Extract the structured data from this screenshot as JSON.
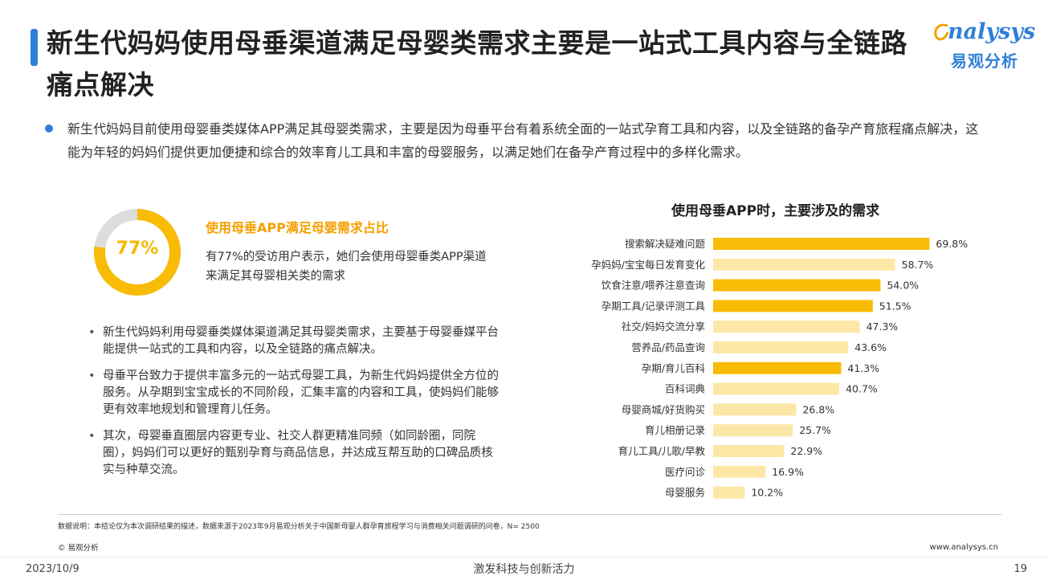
{
  "header": {
    "title": "新生代妈妈使用母垂渠道满足母婴类需求主要是一站式工具内容与全链路痛点解决",
    "logo_en": "nalysys",
    "logo_cn": "易观分析"
  },
  "summary": "新生代妈妈目前使用母婴垂类媒体APP满足其母婴类需求，主要是因为母垂平台有着系统全面的一站式孕育工具和内容，以及全链路的备孕产育旅程痛点解决，这能为年轻的妈妈们提供更加便捷和综合的效率育儿工具和丰富的母婴服务，以满足她们在备孕产育过程中的多样化需求。",
  "stat": {
    "value_label": "77%",
    "value": 77,
    "title": "使用母垂APP满足母婴需求占比",
    "desc": "有77%的受访用户表示，她们会使用母婴垂类APP渠道来满足其母婴相关类的需求"
  },
  "bullets": [
    "新生代妈妈利用母婴垂类媒体渠道满足其母婴类需求，主要基于母婴垂媒平台能提供一站式的工具和内容，以及全链路的痛点解决。",
    "母垂平台致力于提供丰富多元的一站式母婴工具，为新生代妈妈提供全方位的服务。从孕期到宝宝成长的不同阶段，汇集丰富的内容和工具，使妈妈们能够更有效率地规划和管理育儿任务。",
    "其次，母婴垂直圈层内容更专业、社交人群更精准同频（如同龄圈，同院圈），妈妈们可以更好的甄别孕育与商品信息，并达成互帮互助的口碑品质核实与种草交流。"
  ],
  "bullet_mark": "•",
  "chart_data": {
    "type": "bar",
    "orientation": "horizontal",
    "title": "使用母垂APP时，主要涉及的需求",
    "categories": [
      "搜索解决疑难问题",
      "孕妈妈/宝宝每日发育变化",
      "饮食注意/喂养注意查询",
      "孕期工具/记录评测工具",
      "社交/妈妈交流分享",
      "营养品/药品查询",
      "孕期/育儿百科",
      "百科词典",
      "母婴商城/好货购买",
      "育儿相册记录",
      "育儿工具/儿歌/早教",
      "医疗问诊",
      "母婴服务"
    ],
    "values": [
      69.8,
      58.7,
      54.0,
      51.5,
      47.3,
      43.6,
      41.3,
      40.7,
      26.8,
      25.7,
      22.9,
      16.9,
      10.2
    ],
    "value_labels": [
      "69.8%",
      "58.7%",
      "54.0%",
      "51.5%",
      "47.3%",
      "43.6%",
      "41.3%",
      "40.7%",
      "26.8%",
      "25.7%",
      "22.9%",
      "16.9%",
      "10.2%"
    ],
    "highlighted": [
      true,
      false,
      true,
      true,
      false,
      false,
      true,
      false,
      false,
      false,
      false,
      false,
      false
    ],
    "xlim": [
      0,
      100
    ],
    "colors": {
      "highlight": "#f8bc06",
      "normal": "#fde7a6"
    }
  },
  "footer": {
    "note": "数据说明：本结论仅为本次调研结果的描述，数据来源于2023年9月易观分析关于中国新母婴人群孕育旅程学习与消费相关问题调研的问卷，N= 2500",
    "copyright": "© 易观分析",
    "website": "www.analysys.cn",
    "date": "2023/10/9",
    "slogan": "激发科技与创新活力",
    "page": "19"
  },
  "colors": {
    "accent": "#2f7fd9",
    "orange": "#f5a000",
    "donut": "#f8bc06",
    "donut_track": "#dddddd"
  }
}
